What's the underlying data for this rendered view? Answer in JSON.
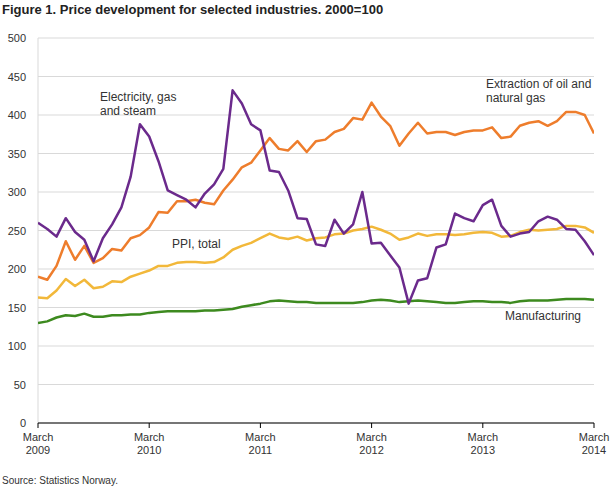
{
  "chart_data": {
    "type": "line",
    "title": "Figure 1. Price development for selected industries. 2000=100",
    "source": "Source: Statistics Norway.",
    "categories": [
      "March 2009",
      null,
      null,
      null,
      null,
      null,
      null,
      null,
      null,
      null,
      null,
      null,
      "March 2010",
      null,
      null,
      null,
      null,
      null,
      null,
      null,
      null,
      null,
      null,
      null,
      "March 2011",
      null,
      null,
      null,
      null,
      null,
      null,
      null,
      null,
      null,
      null,
      null,
      "March 2012",
      null,
      null,
      null,
      null,
      null,
      null,
      null,
      null,
      null,
      null,
      null,
      "March 2013",
      null,
      null,
      null,
      null,
      null,
      null,
      null,
      null,
      null,
      null,
      null,
      "March 2014"
    ],
    "ylim": [
      0,
      500
    ],
    "yticks": [
      0,
      50,
      100,
      150,
      200,
      250,
      300,
      350,
      400,
      450,
      500
    ],
    "grid": true,
    "series": [
      {
        "name": "Electricity, gas and steam",
        "color": "#6b2a8c",
        "values": [
          260,
          252,
          242,
          266,
          248,
          238,
          210,
          240,
          258,
          280,
          320,
          388,
          372,
          340,
          302,
          296,
          290,
          280,
          298,
          310,
          330,
          432,
          415,
          388,
          380,
          328,
          326,
          302,
          266,
          265,
          232,
          230,
          264,
          246,
          258,
          300,
          233,
          234,
          218,
          202,
          155,
          185,
          188,
          228,
          232,
          272,
          266,
          262,
          283,
          290,
          256,
          242,
          246,
          248,
          262,
          268,
          264,
          252,
          251,
          236,
          218
        ]
      },
      {
        "name": "Extraction of oil and natural gas",
        "color": "#ee7d2c",
        "values": [
          190,
          186,
          204,
          236,
          212,
          230,
          208,
          214,
          226,
          224,
          240,
          244,
          254,
          274,
          273,
          288,
          288,
          290,
          286,
          284,
          302,
          316,
          332,
          338,
          354,
          370,
          356,
          354,
          366,
          352,
          366,
          368,
          378,
          382,
          396,
          394,
          416,
          398,
          386,
          360,
          376,
          390,
          376,
          378,
          378,
          374,
          378,
          380,
          380,
          384,
          370,
          372,
          386,
          390,
          392,
          386,
          392,
          404,
          404,
          400,
          376
        ]
      },
      {
        "name": "PPI, total",
        "color": "#f2b83a",
        "values": [
          163,
          162,
          172,
          187,
          178,
          186,
          175,
          177,
          184,
          183,
          190,
          194,
          198,
          204,
          204,
          208,
          209,
          209,
          208,
          209,
          215,
          225,
          230,
          234,
          240,
          246,
          241,
          239,
          242,
          237,
          240,
          241,
          245,
          246,
          250,
          252,
          255,
          251,
          246,
          238,
          241,
          246,
          243,
          245,
          245,
          244,
          245,
          247,
          248,
          247,
          242,
          243,
          248,
          251,
          250,
          251,
          252,
          256,
          256,
          254,
          247
        ]
      },
      {
        "name": "Manufacturing",
        "color": "#3d8a1f",
        "values": [
          130,
          132,
          137,
          140,
          139,
          142,
          138,
          138,
          140,
          140,
          141,
          141,
          143,
          144,
          145,
          145,
          145,
          145,
          146,
          146,
          147,
          148,
          151,
          153,
          155,
          158,
          159,
          158,
          157,
          157,
          156,
          156,
          156,
          156,
          156,
          157,
          159,
          160,
          159,
          157,
          158,
          159,
          158,
          157,
          156,
          156,
          157,
          158,
          158,
          157,
          157,
          156,
          158,
          159,
          159,
          159,
          160,
          161,
          161,
          161,
          160
        ]
      }
    ]
  }
}
